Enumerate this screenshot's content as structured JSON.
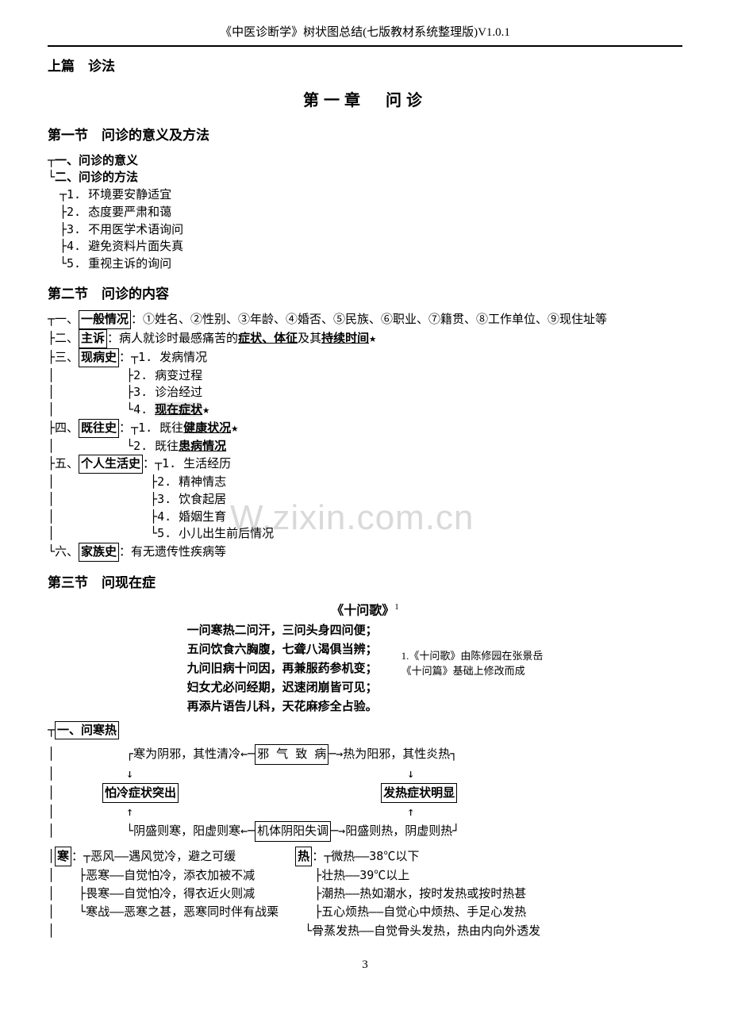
{
  "document_header": "《中医诊断学》树状图总结(七版教材系统整理版)V1.0.1",
  "watermark": "W.zixin.com.cn",
  "part_title": "上篇　诊法",
  "chapter_title": "第一章　问诊",
  "section1": {
    "title": "第一节　问诊的意义及方法",
    "item1": "一、问诊的意义",
    "item2": "二、问诊的方法",
    "m1": "1. 环境要安静适宜",
    "m2": "2. 态度要严肃和蔼",
    "m3": "3. 不用医学术语询问",
    "m4": "4. 避免资料片面失真",
    "m5": "5. 重视主诉的询问"
  },
  "section2": {
    "title": "第二节　问诊的内容",
    "r1_label": "一般情况",
    "r1_rest": "：①姓名、②性别、③年龄、④婚否、⑤民族、⑥职业、⑦籍贯、⑧工作单位、⑨现住址等",
    "r2_label": "主诉",
    "r2_a": "：病人就诊时最感痛苦的",
    "r2_b": "症状、体征",
    "r2_c": "及其",
    "r2_d": "持续时间",
    "r2_e": "★",
    "r3_label": "现病史",
    "r3_1": "1. 发病情况",
    "r3_2": "2. 病变过程",
    "r3_3": "3. 诊治经过",
    "r3_4a": "4.",
    "r3_4b": "现在症状",
    "r3_4c": "★",
    "r4_label": "既往史",
    "r4_1a": "1. 既往",
    "r4_1b": "健康状况",
    "r4_1c": "★",
    "r4_2a": "2. 既往",
    "r4_2b": "患病情况",
    "r5_label": "个人生活史",
    "r5_1": "1. 生活经历",
    "r5_2": "2. 精神情志",
    "r5_3": "3. 饮食起居",
    "r5_4": "4. 婚姻生育",
    "r5_5": "5. 小儿出生前后情况",
    "r6_label": "家族史",
    "r6_rest": "：有无遗传性疾病等"
  },
  "section3": {
    "title": "第三节　问现在症",
    "poem_title": "《十问歌》",
    "sup": "1",
    "poem_l1": "一问寒热二问汗，三问头身四问便；",
    "poem_l2": "五问饮食六胸腹，七聋八渴俱当辨；",
    "poem_l3": "九问旧病十问因，再兼服药参机变；",
    "poem_l4": "妇女尤必问经期，迟速闭崩皆可见；",
    "poem_l5": "再添片语告儿科，天花麻疹全占验。",
    "note_l1": "1.《十问歌》由陈修园在张景岳",
    "note_l2": "《十问篇》基础上修改而成",
    "sub_title": "一、问寒热",
    "d_top_left": "寒为阴邪，其性清冷",
    "d_top_mid": "邪 气 致 病",
    "d_top_right": "热为阳邪，其性炎热",
    "d_box_left": "怕冷症状突出",
    "d_box_right": "发热症状明显",
    "d_bot_left": "阴盛则寒，阳虚则寒",
    "d_bot_mid": "机体阴阳失调",
    "d_bot_right": "阳盛则热，阴虚则热",
    "cold_label": "寒",
    "cold_1": "恶风——遇风觉冷，避之可缓",
    "cold_2": "恶寒——自觉怕冷，添衣加被不减",
    "cold_3": "畏寒——自觉怕冷，得衣近火则减",
    "cold_4": "寒战——恶寒之甚，恶寒同时伴有战栗",
    "heat_label": "热",
    "heat_1": "微热——38℃以下",
    "heat_2": "壮热——39℃以上",
    "heat_3": "潮热——热如潮水，按时发热或按时热甚",
    "heat_4": "五心烦热——自觉心中烦热、手足心发热",
    "heat_5": "骨蒸发热——自觉骨头发热，热由内向外透发"
  },
  "page_number": "3"
}
